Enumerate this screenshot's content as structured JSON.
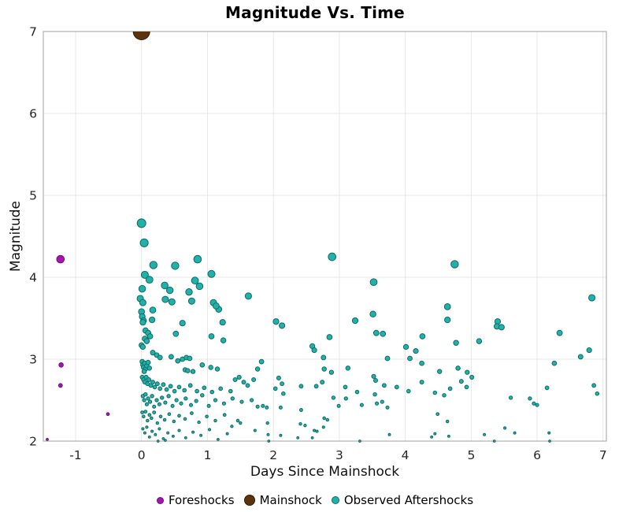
{
  "chart_data": {
    "type": "scatter",
    "title": "Magnitude Vs. Time",
    "xlabel": "Days Since Mainshock",
    "ylabel": "Magnitude",
    "xlim": [
      -1.49,
      7.05
    ],
    "ylim": [
      2,
      7
    ],
    "xticks": [
      -1,
      0,
      1,
      2,
      3,
      4,
      5,
      6,
      7
    ],
    "yticks": [
      2,
      3,
      4,
      5,
      6,
      7
    ],
    "grid": true,
    "grid_color": "#e7e7e7",
    "border_color": "#b0b0b0",
    "background": "#ffffff",
    "legend_position": "bottom-center",
    "marker_scale": {
      "base_radius": 1.35,
      "per_magnitude": 1.55,
      "mainshock_radius": 10.5
    },
    "series": [
      {
        "name": "Foreshocks",
        "color": "#a912b5",
        "edge_color": "#6e0d77",
        "points": [
          [
            -1.43,
            2.02
          ],
          [
            -1.23,
            2.68
          ],
          [
            -1.22,
            2.93
          ],
          [
            -1.23,
            4.22
          ],
          [
            -0.51,
            2.33
          ]
        ]
      },
      {
        "name": "Mainshock",
        "color": "#5b330d",
        "edge_color": "#311b06",
        "points": [
          [
            0.0,
            7.0
          ]
        ]
      },
      {
        "name": "Observed Aftershocks",
        "color": "#20b2aa",
        "edge_color": "#0e6b66",
        "points": [
          [
            0.0,
            4.66
          ],
          [
            0.04,
            4.42
          ],
          [
            0.05,
            4.03
          ],
          [
            0.01,
            3.86
          ],
          [
            0.12,
            3.97
          ],
          [
            0.18,
            4.15
          ],
          [
            0.35,
            3.9
          ],
          [
            0.43,
            3.84
          ],
          [
            0.51,
            4.14
          ],
          [
            0.72,
            3.82
          ],
          [
            0.76,
            3.71
          ],
          [
            0.81,
            3.96
          ],
          [
            0.85,
            4.22
          ],
          [
            0.88,
            3.89
          ],
          [
            1.06,
            4.04
          ],
          [
            2.89,
            4.25
          ],
          [
            3.52,
            3.94
          ],
          [
            4.75,
            4.16
          ],
          [
            1.62,
            3.77
          ],
          [
            6.83,
            3.75
          ],
          [
            -0.02,
            3.74
          ],
          [
            0.02,
            3.69
          ],
          [
            0.46,
            3.7
          ],
          [
            1.09,
            3.69
          ],
          [
            1.17,
            3.61
          ],
          [
            0.17,
            3.6
          ],
          [
            0.0,
            3.58
          ],
          [
            1.13,
            3.65
          ],
          [
            0.36,
            3.73
          ],
          [
            4.64,
            3.64
          ],
          [
            3.51,
            3.55
          ],
          [
            0.01,
            3.52
          ],
          [
            0.03,
            3.47
          ],
          [
            0.02,
            3.45
          ],
          [
            0.16,
            3.48
          ],
          [
            4.64,
            3.48
          ],
          [
            0.62,
            3.44
          ],
          [
            1.23,
            3.45
          ],
          [
            0.52,
            3.31
          ],
          [
            1.06,
            3.28
          ],
          [
            1.24,
            3.23
          ],
          [
            2.04,
            3.46
          ],
          [
            2.13,
            3.41
          ],
          [
            3.24,
            3.47
          ],
          [
            5.4,
            3.46
          ],
          [
            5.39,
            3.4
          ],
          [
            5.46,
            3.39
          ],
          [
            4.26,
            3.28
          ],
          [
            4.77,
            3.2
          ],
          [
            5.12,
            3.22
          ],
          [
            6.34,
            3.32
          ],
          [
            2.85,
            3.27
          ],
          [
            3.56,
            3.32
          ],
          [
            3.66,
            3.31
          ],
          [
            0.06,
            3.35
          ],
          [
            0.1,
            3.32
          ],
          [
            0.13,
            3.28
          ],
          [
            0.05,
            3.25
          ],
          [
            0.08,
            3.22
          ],
          [
            0.0,
            3.17
          ],
          [
            0.02,
            3.15
          ],
          [
            2.59,
            3.16
          ],
          [
            2.62,
            3.11
          ],
          [
            4.01,
            3.15
          ],
          [
            4.16,
            3.1
          ],
          [
            6.79,
            3.11
          ],
          [
            6.66,
            3.03
          ],
          [
            2.76,
            3.02
          ],
          [
            3.73,
            3.01
          ],
          [
            4.07,
            3.01
          ],
          [
            0.17,
            3.08
          ],
          [
            0.23,
            3.05
          ],
          [
            0.28,
            3.02
          ],
          [
            0.45,
            3.03
          ],
          [
            0.55,
            2.98
          ],
          [
            0.62,
            3.0
          ],
          [
            0.68,
            3.02
          ],
          [
            0.73,
            3.01
          ],
          [
            0.92,
            2.93
          ],
          [
            1.05,
            2.9
          ],
          [
            1.15,
            2.88
          ],
          [
            1.82,
            2.97
          ],
          [
            0.01,
            2.97
          ],
          [
            0.02,
            2.93
          ],
          [
            0.03,
            2.9
          ],
          [
            0.05,
            2.95
          ],
          [
            0.06,
            2.88
          ],
          [
            0.08,
            2.92
          ],
          [
            0.1,
            2.96
          ],
          [
            0.04,
            2.85
          ],
          [
            0.12,
            2.89
          ],
          [
            0.66,
            2.87
          ],
          [
            0.7,
            2.86
          ],
          [
            0.78,
            2.85
          ],
          [
            2.77,
            2.88
          ],
          [
            2.88,
            2.84
          ],
          [
            3.13,
            2.89
          ],
          [
            1.76,
            2.88
          ],
          [
            3.52,
            2.79
          ],
          [
            4.8,
            2.89
          ],
          [
            4.52,
            2.85
          ],
          [
            4.94,
            2.84
          ],
          [
            6.26,
            2.95
          ],
          [
            4.25,
            2.95
          ],
          [
            0.01,
            2.78
          ],
          [
            0.03,
            2.75
          ],
          [
            0.05,
            2.72
          ],
          [
            0.07,
            2.78
          ],
          [
            0.09,
            2.7
          ],
          [
            0.11,
            2.75
          ],
          [
            0.14,
            2.68
          ],
          [
            0.17,
            2.72
          ],
          [
            0.2,
            2.66
          ],
          [
            0.24,
            2.7
          ],
          [
            0.28,
            2.64
          ],
          [
            0.33,
            2.69
          ],
          [
            0.38,
            2.63
          ],
          [
            0.44,
            2.67
          ],
          [
            0.5,
            2.61
          ],
          [
            0.57,
            2.66
          ],
          [
            0.65,
            2.62
          ],
          [
            0.74,
            2.68
          ],
          [
            0.84,
            2.61
          ],
          [
            0.95,
            2.65
          ],
          [
            1.07,
            2.6
          ],
          [
            1.2,
            2.64
          ],
          [
            1.35,
            2.61
          ],
          [
            1.42,
            2.75
          ],
          [
            1.48,
            2.78
          ],
          [
            1.55,
            2.72
          ],
          [
            1.61,
            2.68
          ],
          [
            1.7,
            2.75
          ],
          [
            2.08,
            2.77
          ],
          [
            2.13,
            2.7
          ],
          [
            2.03,
            2.64
          ],
          [
            2.42,
            2.67
          ],
          [
            2.65,
            2.67
          ],
          [
            2.74,
            2.72
          ],
          [
            3.09,
            2.66
          ],
          [
            3.27,
            2.6
          ],
          [
            3.68,
            2.68
          ],
          [
            3.87,
            2.66
          ],
          [
            4.05,
            2.61
          ],
          [
            3.55,
            2.74
          ],
          [
            5.01,
            2.78
          ],
          [
            4.85,
            2.73
          ],
          [
            4.25,
            2.72
          ],
          [
            4.93,
            2.66
          ],
          [
            4.68,
            2.64
          ],
          [
            6.15,
            2.65
          ],
          [
            6.86,
            2.68
          ],
          [
            0.02,
            2.55
          ],
          [
            0.04,
            2.5
          ],
          [
            0.06,
            2.57
          ],
          [
            0.08,
            2.45
          ],
          [
            0.1,
            2.52
          ],
          [
            0.13,
            2.48
          ],
          [
            0.16,
            2.55
          ],
          [
            0.19,
            2.42
          ],
          [
            0.23,
            2.5
          ],
          [
            0.27,
            2.45
          ],
          [
            0.31,
            2.53
          ],
          [
            0.36,
            2.47
          ],
          [
            0.41,
            2.55
          ],
          [
            0.47,
            2.43
          ],
          [
            0.53,
            2.5
          ],
          [
            0.6,
            2.46
          ],
          [
            0.67,
            2.52
          ],
          [
            0.75,
            2.44
          ],
          [
            0.83,
            2.49
          ],
          [
            0.92,
            2.56
          ],
          [
            1.02,
            2.43
          ],
          [
            1.12,
            2.5
          ],
          [
            1.25,
            2.46
          ],
          [
            1.38,
            2.52
          ],
          [
            1.52,
            2.48
          ],
          [
            1.67,
            2.5
          ],
          [
            1.84,
            2.43
          ],
          [
            1.9,
            2.41
          ],
          [
            1.76,
            2.42
          ],
          [
            2.11,
            2.41
          ],
          [
            2.15,
            2.58
          ],
          [
            2.42,
            2.38
          ],
          [
            2.91,
            2.53
          ],
          [
            2.99,
            2.43
          ],
          [
            3.1,
            2.52
          ],
          [
            3.34,
            2.44
          ],
          [
            3.57,
            2.46
          ],
          [
            3.65,
            2.48
          ],
          [
            3.73,
            2.41
          ],
          [
            3.54,
            2.57
          ],
          [
            4.45,
            2.59
          ],
          [
            4.59,
            2.56
          ],
          [
            5.6,
            2.53
          ],
          [
            5.89,
            2.52
          ],
          [
            5.95,
            2.46
          ],
          [
            6.0,
            2.44
          ],
          [
            6.91,
            2.58
          ],
          [
            0.01,
            2.35
          ],
          [
            0.03,
            2.3
          ],
          [
            0.06,
            2.36
          ],
          [
            0.09,
            2.25
          ],
          [
            0.12,
            2.32
          ],
          [
            0.15,
            2.28
          ],
          [
            0.19,
            2.35
          ],
          [
            0.24,
            2.22
          ],
          [
            0.29,
            2.3
          ],
          [
            0.35,
            2.26
          ],
          [
            0.42,
            2.33
          ],
          [
            0.49,
            2.24
          ],
          [
            0.57,
            2.31
          ],
          [
            0.66,
            2.27
          ],
          [
            0.76,
            2.34
          ],
          [
            0.87,
            2.23
          ],
          [
            0.99,
            2.3
          ],
          [
            1.12,
            2.25
          ],
          [
            1.26,
            2.32
          ],
          [
            1.46,
            2.25
          ],
          [
            1.5,
            2.22
          ],
          [
            2.77,
            2.28
          ],
          [
            2.82,
            2.26
          ],
          [
            4.49,
            2.33
          ],
          [
            4.64,
            2.24
          ],
          [
            1.91,
            2.22
          ],
          [
            2.41,
            2.21
          ],
          [
            5.51,
            2.16
          ],
          [
            0.02,
            2.15
          ],
          [
            0.05,
            2.1
          ],
          [
            0.08,
            2.17
          ],
          [
            0.12,
            2.05
          ],
          [
            0.16,
            2.12
          ],
          [
            0.21,
            2.08
          ],
          [
            0.27,
            2.15
          ],
          [
            0.33,
            2.03
          ],
          [
            0.4,
            2.1
          ],
          [
            0.48,
            2.06
          ],
          [
            0.57,
            2.13
          ],
          [
            0.67,
            2.04
          ],
          [
            0.78,
            2.11
          ],
          [
            0.9,
            2.07
          ],
          [
            1.03,
            2.14
          ],
          [
            1.16,
            2.02
          ],
          [
            1.3,
            2.09
          ],
          [
            1.37,
            2.18
          ],
          [
            1.72,
            2.13
          ],
          [
            1.92,
            2.08
          ],
          [
            2.11,
            2.07
          ],
          [
            2.37,
            2.04
          ],
          [
            2.48,
            2.19
          ],
          [
            2.59,
            2.04
          ],
          [
            2.62,
            2.13
          ],
          [
            2.66,
            2.12
          ],
          [
            2.76,
            2.17
          ],
          [
            3.76,
            2.08
          ],
          [
            3.31,
            2.0
          ],
          [
            4.45,
            2.09
          ],
          [
            4.4,
            2.05
          ],
          [
            4.66,
            2.06
          ],
          [
            5.2,
            2.08
          ],
          [
            5.35,
            2.0
          ],
          [
            5.66,
            2.1
          ],
          [
            6.18,
            2.1
          ],
          [
            6.19,
            2.0
          ],
          [
            1.93,
            2.0
          ],
          [
            0.25,
            2.0
          ],
          [
            0.36,
            2.01
          ]
        ]
      }
    ]
  }
}
